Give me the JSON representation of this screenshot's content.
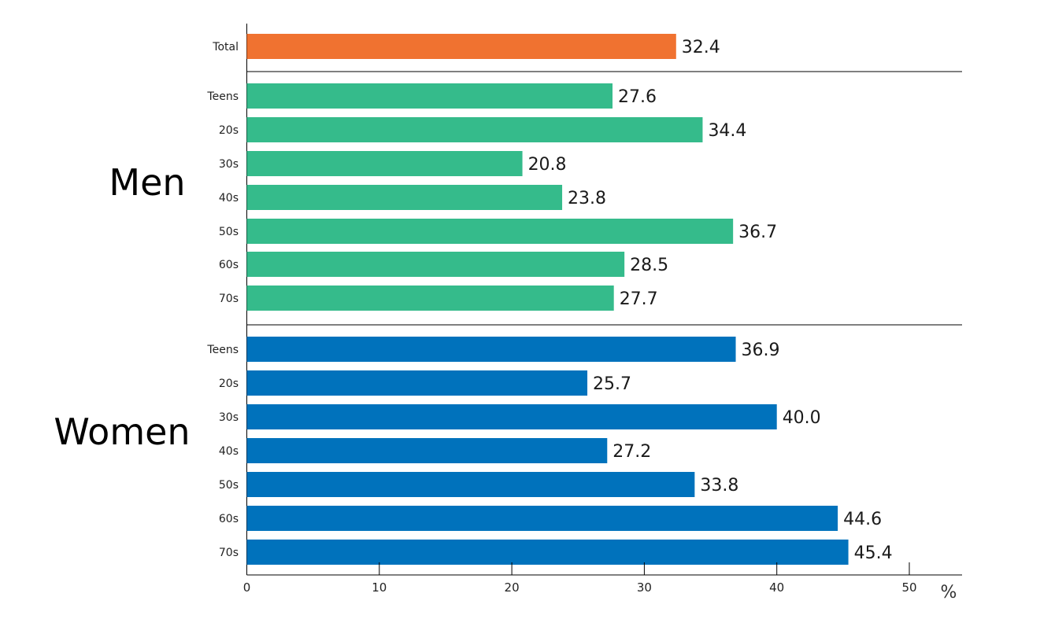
{
  "chart_data": {
    "type": "bar",
    "orientation": "horizontal",
    "xlim": [
      0,
      54
    ],
    "x_ticks": [
      0,
      10,
      20,
      30,
      40,
      50
    ],
    "x_unit": "%",
    "grid": false,
    "groups": [
      {
        "name": "",
        "color": "#f07230",
        "categories": [
          "Total"
        ],
        "values": [
          32.4
        ],
        "value_labels": [
          "32.4"
        ]
      },
      {
        "name": "Men",
        "color": "#35bb8b",
        "categories": [
          "Teens",
          "20s",
          "30s",
          "40s",
          "50s",
          "60s",
          "70s"
        ],
        "values": [
          27.6,
          34.4,
          20.8,
          23.8,
          36.7,
          28.5,
          27.7
        ],
        "value_labels": [
          "27.6",
          "34.4",
          "20.8",
          "23.8",
          "36.7",
          "28.5",
          "27.7"
        ]
      },
      {
        "name": "Women",
        "color": "#0072bc",
        "categories": [
          "Teens",
          "20s",
          "30s",
          "40s",
          "50s",
          "60s",
          "70s"
        ],
        "values": [
          36.9,
          25.7,
          40.0,
          27.2,
          33.8,
          44.6,
          45.4
        ],
        "value_labels": [
          "36.9",
          "25.7",
          "40.0",
          "27.2",
          "33.8",
          "44.6",
          "45.4"
        ]
      }
    ]
  }
}
